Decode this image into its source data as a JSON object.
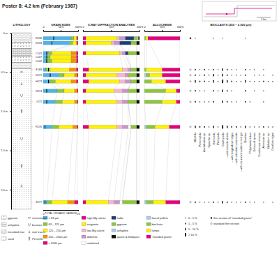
{
  "title": "Poster 8: 4.2 km (February 1987)",
  "map": {
    "scale_label": "1 km"
  },
  "headers": {
    "lithology": "LITHOLOGY"
  },
  "depth_axis": {
    "lim": [
      0,
      2.25
    ],
    "ticks": [
      {
        "value": 0,
        "label": "0 m"
      },
      {
        "value": 0.5,
        "label": "0.5 m"
      },
      {
        "value": 1,
        "label": "1.0 m"
      },
      {
        "value": 1.5,
        "label": "1.5 m"
      },
      {
        "value": 2,
        "label": "2.0 m"
      }
    ]
  },
  "samples": {
    "names": [
      "R136",
      "R134",
      "C141",
      "C147",
      "C142",
      "F168",
      "G171",
      "H173",
      "H174",
      "J175",
      "R176",
      "S177"
    ],
    "depth": [
      0.07,
      0.13,
      0.26,
      0.31,
      0.36,
      0.47,
      0.54,
      0.62,
      0.74,
      0.88,
      1.2,
      2.16
    ]
  },
  "chart_data": [
    {
      "type": "bar",
      "orientation": "horizontal",
      "stacked": true,
      "title": "GRAIN SIZES",
      "xlim": [
        0,
        100
      ],
      "xticks": [
        0,
        {
          "value": 50,
          "label": "50%"
        },
        {
          "value": 100,
          "label": "100%"
        }
      ],
      "series": [
        {
          "name": "< 63 µm",
          "color": "#4fb3e8",
          "values": [
            80,
            75,
            15,
            10,
            10,
            8,
            45,
            20,
            40,
            35,
            25,
            10
          ]
        },
        {
          "name": "63 – 125 µm",
          "color": "#8cc63e",
          "values": [
            8,
            10,
            10,
            10,
            15,
            12,
            15,
            15,
            20,
            20,
            20,
            15
          ]
        },
        {
          "name": "125 – 250 µm",
          "color": "#fff200",
          "values": [
            7,
            10,
            55,
            60,
            55,
            55,
            30,
            45,
            30,
            35,
            40,
            45
          ]
        },
        {
          "name": "250 – 2000 µm",
          "color": "#f39200",
          "values": [
            3,
            3,
            15,
            15,
            15,
            20,
            8,
            15,
            8,
            8,
            12,
            20
          ]
        },
        {
          "name": "> 2000 µm",
          "color": "#e5007d",
          "values": [
            2,
            2,
            5,
            5,
            5,
            5,
            2,
            5,
            2,
            2,
            3,
            10
          ]
        }
      ]
    },
    {
      "type": "bar",
      "orientation": "horizontal",
      "stacked": true,
      "title": "X-RAY DIFFRACTION ANALYSES",
      "xlim": [
        0,
        100
      ],
      "xticks": [
        0,
        {
          "value": 50,
          "label": "50%"
        },
        {
          "value": 100,
          "label": "100%"
        }
      ],
      "series": [
        {
          "name": "high-Mg calcite",
          "color": "#e5007d",
          "values": [
            5,
            5,
            5,
            null,
            null,
            10,
            5,
            10,
            5,
            5,
            10,
            5
          ]
        },
        {
          "name": "aragonite",
          "color": "#fff200",
          "values": [
            55,
            45,
            60,
            null,
            null,
            60,
            55,
            55,
            50,
            55,
            50,
            40
          ]
        },
        {
          "name": "low-Mg calcite",
          "color": "#f7b3cf",
          "values": [
            5,
            5,
            5,
            null,
            null,
            10,
            15,
            10,
            15,
            10,
            10,
            10
          ]
        },
        {
          "name": "dolomite",
          "color": "#c697c4",
          "values": [
            10,
            10,
            5,
            null,
            null,
            5,
            5,
            10,
            10,
            10,
            10,
            10
          ]
        },
        {
          "name": "undefined",
          "color": "#ffffff",
          "values": [
            0,
            0,
            0,
            null,
            null,
            0,
            0,
            0,
            0,
            0,
            5,
            5
          ]
        },
        {
          "name": "halite",
          "color": "#1d3c78",
          "values": [
            15,
            20,
            5,
            null,
            null,
            0,
            0,
            0,
            0,
            0,
            0,
            0
          ]
        },
        {
          "name": "gypsum",
          "color": "#8cc63e",
          "values": [
            6,
            10,
            15,
            null,
            null,
            10,
            15,
            10,
            15,
            15,
            10,
            25
          ]
        },
        {
          "name": "anhydrite",
          "color": "#a6cfee",
          "values": [
            2,
            0,
            0,
            null,
            null,
            0,
            0,
            0,
            0,
            0,
            0,
            0
          ]
        },
        {
          "name": "quartz & feldspars",
          "color": "#111111",
          "values": [
            2,
            5,
            5,
            null,
            null,
            5,
            5,
            5,
            5,
            5,
            5,
            5
          ]
        }
      ]
    },
    {
      "type": "bar",
      "orientation": "horizontal",
      "stacked": true,
      "title": "ALLOCHEMS",
      "xlim": [
        0,
        100
      ],
      "xticks": [
        0,
        {
          "value": 50,
          "label": "50%"
        },
        {
          "value": 100,
          "label": "100%"
        }
      ],
      "series": [
        {
          "name": "faecal pellets",
          "color": "#a6cfee",
          "values": [
            0,
            null,
            null,
            null,
            null,
            0,
            5,
            0,
            0,
            0,
            5,
            5
          ]
        },
        {
          "name": "bioclasts",
          "color": "#8cc63e",
          "values": [
            5,
            null,
            null,
            null,
            null,
            5,
            10,
            20,
            60,
            50,
            25,
            20
          ]
        },
        {
          "name": "lumps",
          "color": "#fff200",
          "values": [
            5,
            null,
            null,
            null,
            null,
            45,
            35,
            40,
            30,
            40,
            40,
            35
          ]
        },
        {
          "name": "\"rounded grains\"",
          "color": "#e5007d",
          "values": [
            90,
            null,
            null,
            null,
            null,
            50,
            50,
            40,
            10,
            10,
            30,
            40
          ]
        }
      ]
    }
  ],
  "toc": {
    "title": "TOTAL ORGANIC CARBON",
    "lim": [
      0,
      1
    ],
    "ticks": [
      0,
      {
        "value": 1,
        "label": "1%"
      }
    ],
    "values": [
      0.3,
      0.25,
      0.1,
      0.1,
      0.1,
      0.15,
      0.2,
      0.15,
      0.1,
      0.1,
      0.05,
      0.05
    ]
  },
  "lithology": {
    "patterns": [
      "gypsum",
      "anhydrite",
      "microbial mat",
      "sand"
    ],
    "symbols": [
      "cementation",
      "burrows",
      "root traces",
      "Pirenella"
    ],
    "layers": [
      {
        "type": "microbial mat",
        "from": 0,
        "to": 0.12
      },
      {
        "type": "gypsum",
        "from": 0.12,
        "to": 0.2
      },
      {
        "type": "anhydrite",
        "from": 0.2,
        "to": 0.3
      },
      {
        "type": "gypsum",
        "from": 0.3,
        "to": 0.38
      },
      {
        "type": "microbial mat",
        "from": 0.38,
        "to": 0.46
      },
      {
        "type": "sand",
        "from": 0.46,
        "to": 2.25
      }
    ],
    "features": [
      {
        "type": "cementation",
        "depth": 0.5
      },
      {
        "type": "root traces",
        "depth": 0.65
      },
      {
        "type": "burrows",
        "depth": 0.8
      },
      {
        "type": "Pirenella",
        "depth": 1.0
      },
      {
        "type": "burrows",
        "depth": 1.35
      },
      {
        "type": "Pirenella",
        "depth": 1.7
      },
      {
        "type": "root traces",
        "depth": 1.95
      }
    ]
  },
  "bioclasts": {
    "title": "BIOCLASTS (250 – 2,000 µm)",
    "taxa": [
      "Miliolids",
      "Peneroplids",
      "Acetabularia sp.",
      "Spirorbis sp.",
      "Ostracods",
      "Pteropods",
      "Gastropods",
      "– with smooth whorls",
      "– with longitudinal ridges",
      "– with reticulate ornaments",
      "– with an uneven anterior margin",
      "Bivalves",
      "Polychaete tubes",
      "Echinoid spines",
      "Crustacean remains",
      "Ammonia sp.",
      "Elphidium sp.",
      "Coralline algae"
    ],
    "classes": [
      "0 - 1 %",
      "1 - 5 %",
      "5 - 10 %",
      "> 10 %"
    ],
    "section_types": [
      "thin section of \"rounded grains\"",
      "standard thin section"
    ],
    "section": [
      0,
      null,
      null,
      null,
      null,
      1,
      1,
      1,
      1,
      1,
      1,
      1
    ],
    "abundance": [
      [
        1,
        null,
        null,
        null,
        1,
        null,
        1,
        null,
        null,
        null,
        null,
        1,
        null,
        null,
        null,
        null,
        null,
        null
      ],
      null,
      null,
      null,
      null,
      [
        2,
        1,
        2,
        1,
        2,
        1,
        3,
        2,
        1,
        1,
        null,
        2,
        1,
        1,
        null,
        1,
        null,
        null
      ],
      [
        2,
        1,
        2,
        1,
        3,
        1,
        3,
        2,
        1,
        1,
        1,
        2,
        null,
        1,
        1,
        1,
        null,
        1
      ],
      [
        3,
        2,
        2,
        1,
        3,
        1,
        4,
        3,
        2,
        1,
        1,
        3,
        1,
        1,
        1,
        2,
        1,
        1
      ],
      [
        2,
        1,
        1,
        null,
        2,
        1,
        3,
        2,
        1,
        null,
        null,
        2,
        null,
        1,
        null,
        1,
        null,
        null
      ],
      [
        2,
        1,
        1,
        1,
        2,
        null,
        3,
        2,
        1,
        1,
        null,
        2,
        1,
        null,
        null,
        1,
        null,
        null
      ],
      [
        3,
        2,
        2,
        1,
        3,
        1,
        4,
        3,
        2,
        2,
        1,
        3,
        1,
        1,
        1,
        2,
        1,
        1
      ],
      [
        2,
        1,
        1,
        1,
        2,
        1,
        3,
        2,
        1,
        1,
        1,
        2,
        1,
        1,
        null,
        1,
        null,
        1
      ]
    ]
  }
}
